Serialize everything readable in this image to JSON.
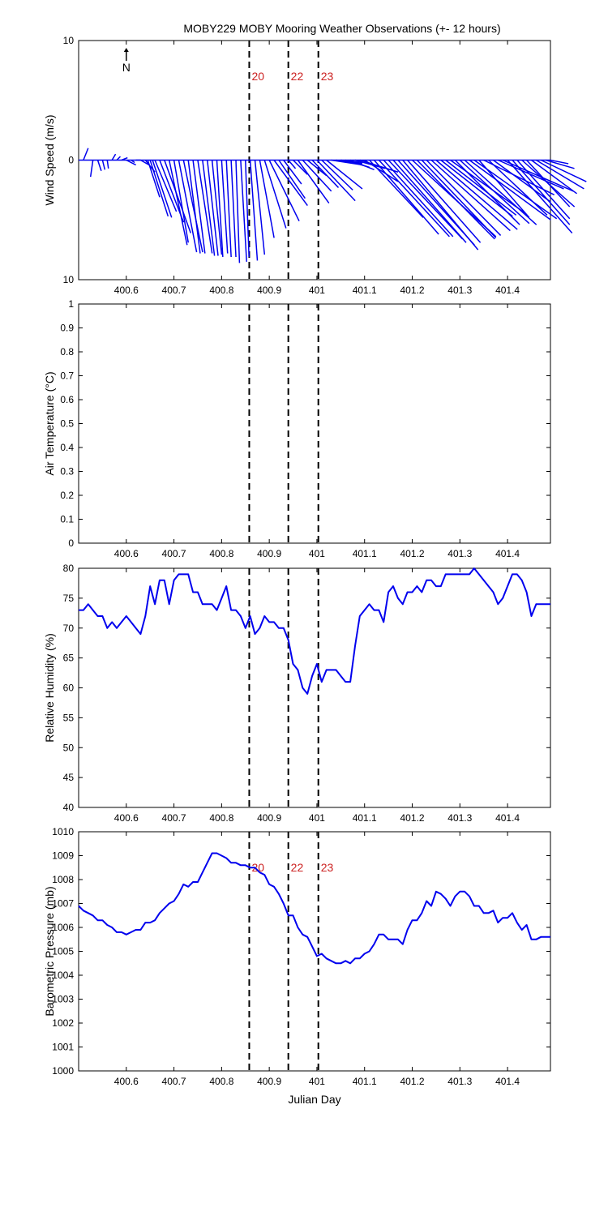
{
  "figure": {
    "title": "MOBY229 MOBY Mooring Weather Observations (+- 12 hours)",
    "north_label": "N"
  },
  "events": {
    "x": [
      400.858,
      400.94,
      401.003
    ],
    "labels": [
      "20",
      "22",
      "23"
    ],
    "label_color": "#cc2222",
    "line_color": "#000000"
  },
  "chart_data": [
    {
      "id": "wind",
      "type": "line",
      "ylabel": "Wind Speed (m/s)",
      "xlabel": "Julian Day",
      "xlim": [
        400.5,
        401.49
      ],
      "ylim": [
        -10,
        10
      ],
      "x_ticks": [
        400.6,
        400.7,
        400.8,
        400.9,
        401,
        401.1,
        401.2,
        401.3,
        401.4
      ],
      "x_tick_labels": [
        "400.6",
        "400.7",
        "400.8",
        "400.9",
        "401",
        "401.1",
        "401.2",
        "401.3",
        "401.4"
      ],
      "y_ticks": [
        10,
        0,
        -10
      ],
      "y_tick_labels": [
        "10",
        "0",
        "10"
      ],
      "event_labels_shown": true,
      "color": "#0000ee",
      "series": [
        {
          "x": [
            400.51,
            400.53,
            400.54,
            400.55,
            400.56,
            400.57,
            400.58,
            400.59,
            400.6,
            400.61,
            400.62,
            400.63,
            400.64,
            400.645,
            400.65,
            400.655,
            400.66,
            400.67,
            400.68,
            400.69,
            400.7,
            400.71,
            400.72,
            400.73,
            400.74,
            400.75,
            400.76,
            400.77,
            400.78,
            400.79,
            400.8,
            400.81,
            400.82,
            400.83,
            400.84,
            400.85,
            400.86,
            400.87,
            400.88,
            400.89,
            400.9,
            400.91,
            400.92,
            400.93,
            400.94,
            400.95,
            400.96,
            400.97,
            400.98,
            400.99,
            401.0,
            401.01,
            401.02,
            401.03,
            401.04,
            401.05,
            401.06,
            401.07,
            401.08,
            401.09,
            401.1,
            401.11,
            401.12,
            401.13,
            401.14,
            401.15,
            401.16,
            401.17,
            401.18,
            401.19,
            401.2,
            401.21,
            401.22,
            401.23,
            401.24,
            401.25,
            401.26,
            401.27,
            401.28,
            401.29,
            401.3,
            401.31,
            401.32,
            401.33,
            401.34,
            401.35,
            401.36,
            401.37,
            401.38,
            401.39,
            401.4,
            401.41,
            401.42,
            401.43,
            401.44,
            401.45,
            401.46,
            401.47,
            401.48,
            401.49
          ],
          "u": [
            0.4,
            -0.2,
            0.3,
            0.2,
            0.1,
            0.3,
            0.3,
            0.5,
            0.8,
            0.3,
            0.4,
            0.7,
            0.8,
            1.0,
            1.5,
            1.6,
            1.8,
            2.0,
            2.2,
            1.5,
            1.2,
            1.5,
            1.6,
            1.0,
            1.0,
            1.2,
            1.0,
            0.9,
            0.8,
            0.5,
            0.5,
            0.4,
            0.4,
            0.3,
            0.5,
            0.3,
            0.6,
            0.8,
            1.2,
            1.8,
            2.5,
            2.8,
            2.2,
            1.5,
            0.6,
            1.2,
            2.6,
            2.4,
            1.6,
            2.2,
            3.2,
            2.6,
            3.0,
            2.6,
            2.2,
            1.8,
            2.0,
            2.0,
            2.5,
            3.2,
            2.8,
            4.5,
            5.4,
            5.9,
            5.8,
            6.2,
            6.1,
            6.4,
            6.3,
            6.1,
            7.0,
            6.5,
            6.2,
            6.2,
            6.6,
            6.8,
            6.0,
            5.9,
            6.2,
            5.4,
            5.8,
            6.0,
            6.8,
            6.9,
            4.2,
            5.9,
            4.9,
            4.8,
            5.5,
            5.9,
            5.4,
            4.8,
            4.4,
            4.4,
            3.6,
            3.8,
            4.0,
            3.8,
            2.4,
            1.5
          ],
          "v": [
            1.0,
            -1.4,
            -0.9,
            -0.8,
            -0.7,
            0.5,
            0.3,
            0.2,
            -0.4,
            -0.2,
            0.0,
            -0.4,
            -1.0,
            -3.1,
            -4.7,
            -4.8,
            -4.3,
            -5.2,
            -6.1,
            -7.1,
            -6.9,
            -7.7,
            -7.7,
            -7.8,
            -7.8,
            -7.8,
            -8.0,
            -8.0,
            -7.9,
            -8.1,
            -7.8,
            -8.1,
            -8.1,
            -8.6,
            -8.5,
            -8.1,
            -8.4,
            -7.9,
            -6.5,
            -5.7,
            -5.1,
            -3.8,
            -3.2,
            -2.0,
            -0.7,
            -1.2,
            -3.6,
            -2.6,
            -1.3,
            -2.3,
            -3.4,
            -2.5,
            -2.4,
            -0.4,
            -0.3,
            -0.2,
            -0.6,
            -0.8,
            -0.7,
            -1.0,
            -1.8,
            -4.8,
            -6.2,
            -6.4,
            -6.4,
            -6.6,
            -6.9,
            -7.1,
            -7.5,
            -6.9,
            -6.4,
            -6.6,
            -6.5,
            -6.3,
            -5.9,
            -5.8,
            -4.7,
            -4.6,
            -4.4,
            -5.4,
            -5.3,
            -5.4,
            -5.0,
            -4.9,
            -4.8,
            -2.9,
            -4.6,
            -3.5,
            -2.4,
            -2.6,
            -6.1,
            -5.4,
            -4.9,
            -3.9,
            -3.9,
            -2.8,
            -2.4,
            -1.8,
            -0.7,
            -0.3
          ]
        }
      ]
    },
    {
      "id": "air_temp",
      "type": "line",
      "ylabel": "Air Temperature (°C)",
      "xlim": [
        400.5,
        401.49
      ],
      "ylim": [
        0,
        1
      ],
      "x_ticks": [
        400.6,
        400.7,
        400.8,
        400.9,
        401,
        401.1,
        401.2,
        401.3,
        401.4
      ],
      "x_tick_labels": [
        "400.6",
        "400.7",
        "400.8",
        "400.9",
        "401",
        "401.1",
        "401.2",
        "401.3",
        "401.4"
      ],
      "y_ticks": [
        0,
        0.1,
        0.2,
        0.3,
        0.4,
        0.5,
        0.6,
        0.7,
        0.8,
        0.9,
        1
      ],
      "y_tick_labels": [
        "0",
        "0.1",
        "0.2",
        "0.3",
        "0.4",
        "0.5",
        "0.6",
        "0.7",
        "0.8",
        "0.9",
        "1"
      ],
      "event_labels_shown": false,
      "color": "#0000ee",
      "series": []
    },
    {
      "id": "humidity",
      "type": "line",
      "ylabel": "Relative Humidity (%)",
      "xlim": [
        400.5,
        401.49
      ],
      "ylim": [
        40,
        80
      ],
      "x_ticks": [
        400.6,
        400.7,
        400.8,
        400.9,
        401,
        401.1,
        401.2,
        401.3,
        401.4
      ],
      "x_tick_labels": [
        "400.6",
        "400.7",
        "400.8",
        "400.9",
        "401",
        "401.1",
        "401.2",
        "401.3",
        "401.4"
      ],
      "y_ticks": [
        40,
        45,
        50,
        55,
        60,
        65,
        70,
        75,
        80
      ],
      "y_tick_labels": [
        "40",
        "45",
        "50",
        "55",
        "60",
        "65",
        "70",
        "75",
        "80"
      ],
      "event_labels_shown": false,
      "color": "#0000ee",
      "series": [
        {
          "x": [
            400.5,
            400.51,
            400.52,
            400.53,
            400.54,
            400.55,
            400.56,
            400.57,
            400.58,
            400.59,
            400.6,
            400.61,
            400.62,
            400.63,
            400.64,
            400.65,
            400.66,
            400.67,
            400.68,
            400.69,
            400.7,
            400.71,
            400.72,
            400.73,
            400.74,
            400.75,
            400.76,
            400.77,
            400.78,
            400.79,
            400.8,
            400.81,
            400.82,
            400.83,
            400.84,
            400.85,
            400.86,
            400.87,
            400.88,
            400.89,
            400.9,
            400.91,
            400.92,
            400.93,
            400.94,
            400.95,
            400.96,
            400.97,
            400.98,
            400.99,
            401.0,
            401.01,
            401.02,
            401.03,
            401.04,
            401.05,
            401.06,
            401.07,
            401.08,
            401.09,
            401.1,
            401.11,
            401.12,
            401.13,
            401.14,
            401.15,
            401.16,
            401.17,
            401.18,
            401.19,
            401.2,
            401.21,
            401.22,
            401.23,
            401.24,
            401.25,
            401.26,
            401.27,
            401.28,
            401.29,
            401.3,
            401.31,
            401.32,
            401.33,
            401.34,
            401.35,
            401.36,
            401.37,
            401.38,
            401.39,
            401.4,
            401.41,
            401.42,
            401.43,
            401.44,
            401.45,
            401.46,
            401.47,
            401.48,
            401.49
          ],
          "y": [
            73,
            73,
            74,
            73,
            72,
            72,
            70,
            71,
            70,
            71,
            72,
            71,
            70,
            69,
            72,
            77,
            74,
            78,
            78,
            74,
            78,
            79,
            79,
            79,
            76,
            76,
            74,
            74,
            74,
            73,
            75,
            77,
            73,
            73,
            72,
            70,
            72,
            69,
            70,
            72,
            71,
            71,
            70,
            70,
            68,
            64,
            63,
            60,
            59,
            62,
            64,
            61,
            63,
            63,
            63,
            62,
            61,
            61,
            67,
            72,
            73,
            74,
            73,
            73,
            71,
            76,
            77,
            75,
            74,
            76,
            76,
            77,
            76,
            78,
            78,
            77,
            77,
            79,
            79,
            79,
            79,
            79,
            79,
            80,
            79,
            78,
            77,
            76,
            74,
            75,
            77,
            79,
            79,
            78,
            76,
            72,
            74,
            74,
            74,
            74
          ],
          "name": ""
        }
      ]
    },
    {
      "id": "pressure",
      "type": "line",
      "ylabel": "Barometric Pressure (mb)",
      "xlabel": "Julian Day",
      "xlim": [
        400.5,
        401.49
      ],
      "ylim": [
        1000,
        1010
      ],
      "x_ticks": [
        400.6,
        400.7,
        400.8,
        400.9,
        401,
        401.1,
        401.2,
        401.3,
        401.4
      ],
      "x_tick_labels": [
        "400.6",
        "400.7",
        "400.8",
        "400.9",
        "401",
        "401.1",
        "401.2",
        "401.3",
        "401.4"
      ],
      "y_ticks": [
        1000,
        1001,
        1002,
        1003,
        1004,
        1005,
        1006,
        1007,
        1008,
        1009,
        1010
      ],
      "y_tick_labels": [
        "1000",
        "1001",
        "1002",
        "1003",
        "1004",
        "1005",
        "1006",
        "1007",
        "1008",
        "1009",
        "1010"
      ],
      "event_labels_shown": true,
      "color": "#0000ee",
      "series": [
        {
          "x": [
            400.5,
            400.51,
            400.52,
            400.53,
            400.54,
            400.55,
            400.56,
            400.57,
            400.58,
            400.59,
            400.6,
            400.61,
            400.62,
            400.63,
            400.64,
            400.65,
            400.66,
            400.67,
            400.68,
            400.69,
            400.7,
            400.71,
            400.72,
            400.73,
            400.74,
            400.75,
            400.76,
            400.77,
            400.78,
            400.79,
            400.8,
            400.81,
            400.82,
            400.83,
            400.84,
            400.85,
            400.86,
            400.87,
            400.88,
            400.89,
            400.9,
            400.91,
            400.92,
            400.93,
            400.94,
            400.95,
            400.96,
            400.97,
            400.98,
            400.99,
            401.0,
            401.01,
            401.02,
            401.03,
            401.04,
            401.05,
            401.06,
            401.07,
            401.08,
            401.09,
            401.1,
            401.11,
            401.12,
            401.13,
            401.14,
            401.15,
            401.16,
            401.17,
            401.18,
            401.19,
            401.2,
            401.21,
            401.22,
            401.23,
            401.24,
            401.25,
            401.26,
            401.27,
            401.28,
            401.29,
            401.3,
            401.31,
            401.32,
            401.33,
            401.34,
            401.35,
            401.36,
            401.37,
            401.38,
            401.39,
            401.4,
            401.41,
            401.42,
            401.43,
            401.44,
            401.45,
            401.46,
            401.47,
            401.48,
            401.49
          ],
          "y": [
            1006.9,
            1006.7,
            1006.6,
            1006.5,
            1006.3,
            1006.3,
            1006.1,
            1006.0,
            1005.8,
            1005.8,
            1005.7,
            1005.8,
            1005.9,
            1005.9,
            1006.2,
            1006.2,
            1006.3,
            1006.6,
            1006.8,
            1007.0,
            1007.1,
            1007.4,
            1007.8,
            1007.7,
            1007.9,
            1007.9,
            1008.3,
            1008.7,
            1009.1,
            1009.1,
            1009.0,
            1008.9,
            1008.7,
            1008.7,
            1008.6,
            1008.6,
            1008.5,
            1008.5,
            1008.3,
            1008.2,
            1007.8,
            1007.7,
            1007.4,
            1007.0,
            1006.5,
            1006.5,
            1006.0,
            1005.7,
            1005.6,
            1005.2,
            1004.8,
            1004.9,
            1004.7,
            1004.6,
            1004.5,
            1004.5,
            1004.6,
            1004.5,
            1004.7,
            1004.7,
            1004.9,
            1005.0,
            1005.3,
            1005.7,
            1005.7,
            1005.5,
            1005.5,
            1005.5,
            1005.3,
            1005.9,
            1006.3,
            1006.3,
            1006.6,
            1007.1,
            1006.9,
            1007.5,
            1007.4,
            1007.2,
            1006.9,
            1007.3,
            1007.5,
            1007.5,
            1007.3,
            1006.9,
            1006.9,
            1006.6,
            1006.6,
            1006.7,
            1006.2,
            1006.4,
            1006.4,
            1006.6,
            1006.2,
            1005.9,
            1006.1,
            1005.5,
            1005.5,
            1005.6,
            1005.6,
            1005.6
          ],
          "name": ""
        }
      ]
    }
  ]
}
